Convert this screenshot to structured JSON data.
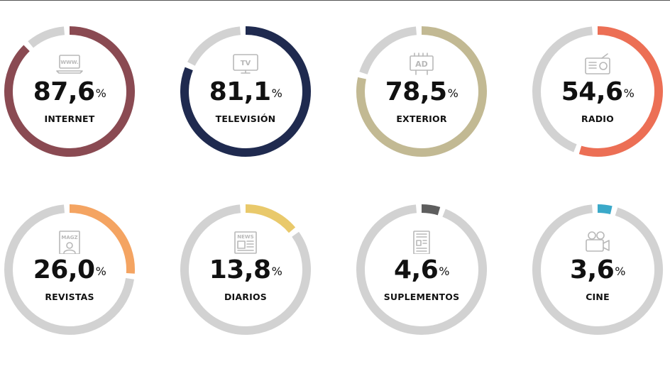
{
  "chart_data": {
    "type": "pie",
    "variant": "donut",
    "track_color": "#d2d2d2",
    "percent_sign": "%",
    "items": [
      {
        "label": "INTERNET",
        "value_text": "87,6",
        "value": 87.6,
        "color": "#8a4a52",
        "icon": "laptop-www-icon",
        "icon_text": "WWW."
      },
      {
        "label": "TELEVISIÓN",
        "value_text": "81,1",
        "value": 81.1,
        "color": "#1f2a4f",
        "icon": "tv-icon",
        "icon_text": "TV"
      },
      {
        "label": "EXTERIOR",
        "value_text": "78,5",
        "value": 78.5,
        "color": "#c2b993",
        "icon": "billboard-ad-icon",
        "icon_text": "AD"
      },
      {
        "label": "RADIO",
        "value_text": "54,6",
        "value": 54.6,
        "color": "#ec6f55",
        "icon": "radio-icon",
        "icon_text": ""
      },
      {
        "label": "REVISTAS",
        "value_text": "26,0",
        "value": 26.0,
        "color": "#f4a462",
        "icon": "magazine-icon",
        "icon_text": "MAGZ"
      },
      {
        "label": "DIARIOS",
        "value_text": "13,8",
        "value": 13.8,
        "color": "#e9c96b",
        "icon": "newspaper-icon",
        "icon_text": "NEWS"
      },
      {
        "label": "SUPLEMENTOS",
        "value_text": "4,6",
        "value": 4.6,
        "color": "#5e5e5e",
        "icon": "supplement-icon",
        "icon_text": ""
      },
      {
        "label": "CINE",
        "value_text": "3,6",
        "value": 3.6,
        "color": "#3aa9c9",
        "icon": "movie-camera-icon",
        "icon_text": ""
      }
    ]
  }
}
